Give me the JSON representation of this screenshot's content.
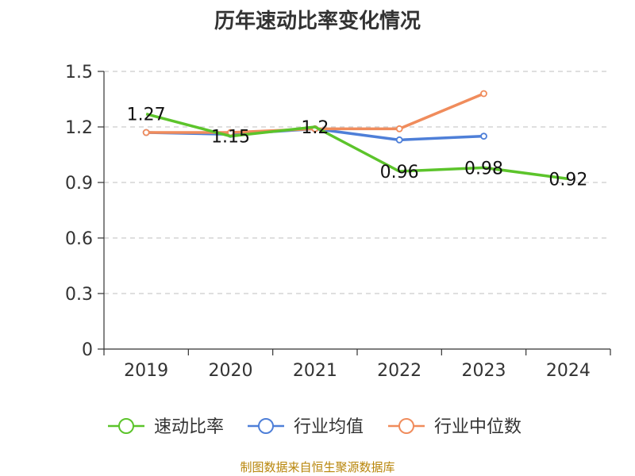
{
  "chart_data": {
    "type": "line",
    "title": "历年速动比率变化情况",
    "categories": [
      "2019",
      "2020",
      "2021",
      "2022",
      "2023",
      "2024"
    ],
    "ylim": [
      0,
      1.5
    ],
    "yticks": [
      "0",
      "0.3",
      "0.6",
      "0.9",
      "1.2",
      "1.5"
    ],
    "grid": true,
    "legend_position": "bottom",
    "series": [
      {
        "name": "速动比率",
        "color": "#5cc42b",
        "values": [
          1.27,
          1.15,
          1.2,
          0.96,
          0.98,
          0.92
        ],
        "labels": [
          "1.27",
          "1.15",
          "1.2",
          "0.96",
          "0.98",
          "0.92"
        ]
      },
      {
        "name": "行业均值",
        "color": "#4e7fd8",
        "values": [
          1.17,
          1.16,
          1.19,
          1.13,
          1.15,
          null
        ]
      },
      {
        "name": "行业中位数",
        "color": "#f08c5c",
        "values": [
          1.17,
          1.17,
          1.19,
          1.19,
          1.38,
          null
        ]
      }
    ],
    "source": "制图数据来自恒生聚源数据库"
  }
}
